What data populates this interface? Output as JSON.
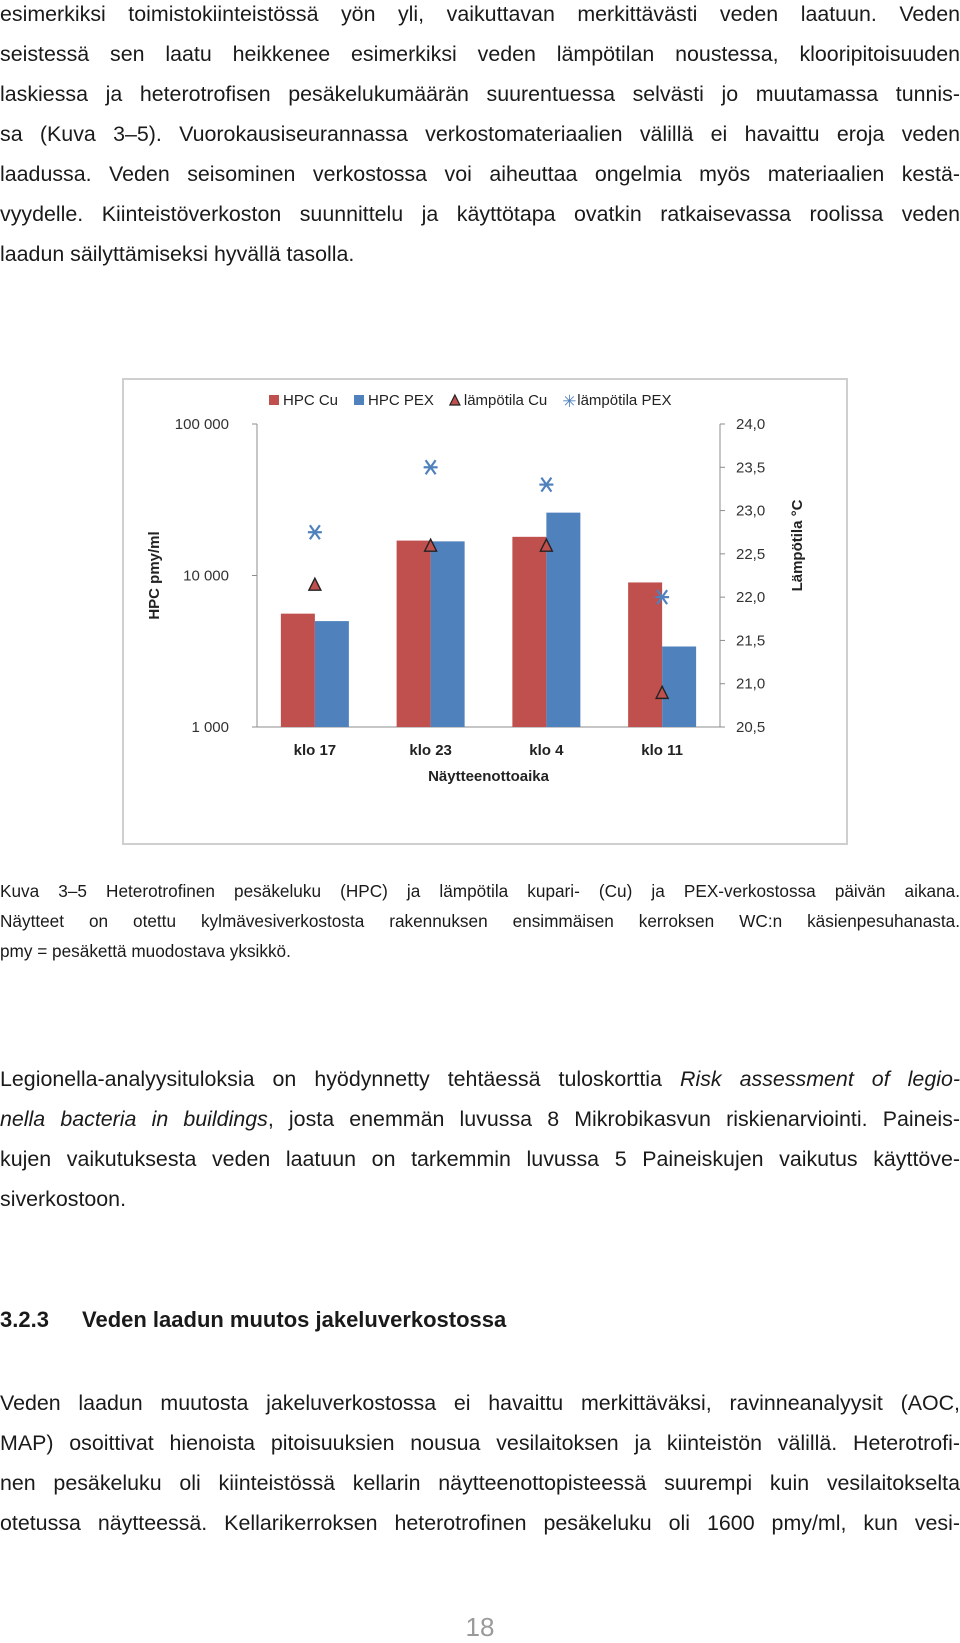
{
  "paragraph1": {
    "lines": [
      "esimerkiksi toimistokiinteistössä yön yli, vaikuttavan merkittävästi veden laatuun. Veden",
      "seistessä sen laatu heikkenee esimerkiksi veden lämpötilan noustessa, klooripitoisuuden",
      "laskiessa ja heterotrofisen pesäkelukumäärän suurentuessa selvästi jo muutamassa tunnis-",
      "sa (Kuva 3–5). Vuorokausiseurannassa verkostomateriaalien välillä ei havaittu eroja veden",
      "laadussa. Veden seisominen verkostossa voi aiheuttaa ongelmia myös materiaalien kestä-",
      "vyydelle. Kiinteistöverkoston suunnittelu ja käyttötapa ovatkin ratkaisevassa roolissa veden",
      "laadun säilyttämiseksi hyvällä tasolla."
    ]
  },
  "chart_data": {
    "type": "bar",
    "title": "",
    "categories": [
      "klo 17",
      "klo 23",
      "klo 4",
      "klo 11"
    ],
    "xlabel": "Näytteenottoaika",
    "ylabel": "HPC pmy/ml",
    "y2label": "Lämpötila °C",
    "yscale": "log",
    "ylim": [
      1000,
      100000
    ],
    "yticks": [
      "1 000",
      "10 000",
      "100 000"
    ],
    "y2lim": [
      20.5,
      24.0
    ],
    "y2ticks": [
      "20,5",
      "21,0",
      "21,5",
      "22,0",
      "22,5",
      "23,0",
      "23,5",
      "24,0"
    ],
    "grid": false,
    "legend": "top",
    "series": [
      {
        "name": "HPC Cu",
        "kind": "bar",
        "axis": "left",
        "color": "#c0504d",
        "values": [
          5600,
          17000,
          18000,
          9000
        ]
      },
      {
        "name": "HPC PEX",
        "kind": "bar",
        "axis": "left",
        "color": "#4f81bd",
        "values": [
          5000,
          16800,
          26000,
          3400
        ]
      },
      {
        "name": "lämpötila Cu",
        "kind": "marker",
        "marker": "triangle",
        "axis": "right",
        "color": "#c0504d",
        "values": [
          22.15,
          22.6,
          22.6,
          20.9
        ]
      },
      {
        "name": "lämpötila PEX",
        "kind": "marker",
        "marker": "star",
        "axis": "right",
        "color": "#4f81bd",
        "values": [
          22.75,
          23.5,
          23.3,
          22.0
        ]
      }
    ]
  },
  "caption": {
    "lines": [
      "Kuva 3–5 Heterotrofinen pesäkeluku (HPC) ja lämpötila kupari- (Cu) ja PEX-verkostossa päivän aikana.",
      "Näytteet on otettu kylmävesiverkostosta rakennuksen ensimmäisen kerroksen WC:n käsienpesuhanasta.",
      "pmy = pesäkettä muodostava yksikkö."
    ]
  },
  "paragraph2": {
    "l1_a": "Legionella-analyysituloksia on hyödynnetty tehtäessä tuloskorttia ",
    "l1_i": "Risk assessment of legio-",
    "l2_i": "nella bacteria in buildings",
    "l2_b": ", josta enemmän luvussa 8 Mikrobikasvun riskienarviointi. Paineis-",
    "l3": "kujen vaikutuksesta veden laatuun on tarkemmin luvussa 5 Paineiskujen vaikutus käyttöve-",
    "l4": "siverkostoon."
  },
  "heading": {
    "number": "3.2.3",
    "title": "Veden laadun muutos jakeluverkostossa"
  },
  "paragraph3": {
    "lines": [
      "Veden laadun muutosta jakeluverkostossa ei havaittu merkittäväksi, ravinneanalyysit (AOC,",
      "MAP) osoittivat hienoista pitoisuuksien nousua vesilaitoksen ja kiinteistön välillä. Heterotrofi-",
      "nen pesäkeluku oli kiinteistössä kellarin näytteenottopisteessä suurempi kuin vesilaitokselta",
      "otetussa näytteessä. Kellarikerroksen heterotrofinen pesäkeluku oli 1600 pmy/ml, kun vesi-"
    ]
  },
  "page_number": "18"
}
